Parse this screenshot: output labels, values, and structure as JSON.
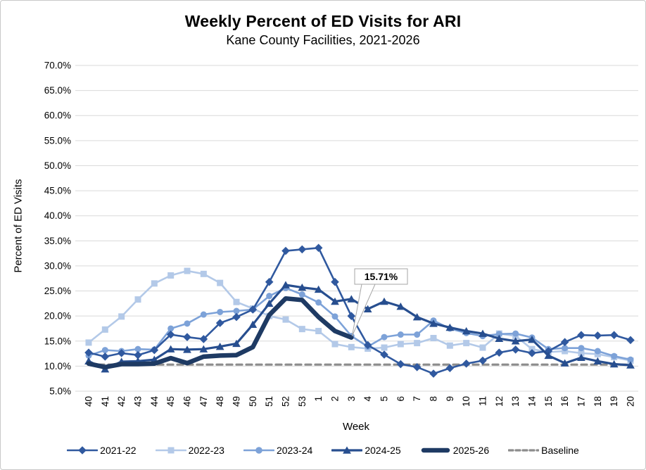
{
  "chart": {
    "title": "Weekly Percent of ED Visits for ARI",
    "subtitle": "Kane County Facilities, 2021-2026",
    "x_axis_label": "Week",
    "y_axis_label": "Percent of ED Visits"
  },
  "annotation": {
    "label": "15.71%",
    "series": "2025-26",
    "week": "3",
    "value": 15.71
  },
  "chart_data": {
    "type": "line",
    "title": "Weekly Percent of ED Visits for ARI",
    "subtitle": "Kane County Facilities, 2021-2026",
    "xlabel": "Week",
    "ylabel": "Percent of ED Visits",
    "x": [
      "40",
      "41",
      "42",
      "43",
      "44",
      "45",
      "46",
      "47",
      "48",
      "49",
      "50",
      "51",
      "52",
      "53",
      "1",
      "2",
      "3",
      "4",
      "5",
      "6",
      "7",
      "8",
      "9",
      "10",
      "11",
      "12",
      "13",
      "14",
      "15",
      "16",
      "17",
      "18",
      "19",
      "20"
    ],
    "ylim": [
      5,
      70
    ],
    "y_tick_step": 5,
    "y_tick_labels": [
      "5.0%",
      "10.0%",
      "15.0%",
      "20.0%",
      "25.0%",
      "30.0%",
      "35.0%",
      "40.0%",
      "45.0%",
      "50.0%",
      "55.0%",
      "60.0%",
      "65.0%",
      "70.0%"
    ],
    "grid": "horizontal",
    "legend_position": "bottom",
    "series": [
      {
        "name": "2021-22",
        "marker": "diamond",
        "color": "#30599F",
        "line_width": 2.6,
        "values": [
          12.7,
          11.9,
          12.6,
          12.2,
          13.2,
          16.3,
          15.8,
          15.4,
          18.6,
          19.8,
          21.3,
          26.8,
          33.0,
          33.3,
          33.6,
          26.8,
          20.0,
          14.2,
          12.3,
          10.4,
          9.8,
          8.5,
          9.6,
          10.5,
          11.1,
          12.7,
          13.3,
          12.6,
          13.0,
          14.8,
          16.2,
          16.1,
          16.2,
          15.2
        ]
      },
      {
        "name": "2022-23",
        "marker": "square",
        "color": "#B3C9E8",
        "line_width": 2.6,
        "values": [
          14.7,
          17.3,
          19.9,
          23.3,
          26.5,
          28.1,
          29.0,
          28.4,
          26.6,
          22.8,
          21.5,
          20.0,
          19.3,
          17.4,
          17.0,
          14.4,
          13.8,
          13.5,
          13.7,
          14.4,
          14.6,
          15.6,
          14.1,
          14.6,
          13.7,
          16.5,
          16.0,
          13.4,
          12.8,
          13.0,
          12.6,
          12.4,
          11.8,
          11.1
        ]
      },
      {
        "name": "2023-24",
        "marker": "circle",
        "color": "#7DA2D8",
        "line_width": 2.6,
        "values": [
          12.1,
          13.2,
          13.0,
          13.4,
          13.3,
          17.5,
          18.5,
          20.3,
          20.8,
          21.0,
          21.3,
          24.0,
          25.6,
          24.3,
          22.7,
          19.9,
          16.0,
          13.9,
          15.8,
          16.3,
          16.3,
          19.1,
          17.5,
          16.6,
          16.0,
          16.4,
          16.5,
          15.7,
          13.4,
          13.6,
          13.6,
          13.0,
          12.0,
          11.3
        ]
      },
      {
        "name": "2024-25",
        "marker": "triangle",
        "color": "#274E8F",
        "line_width": 3.2,
        "values": [
          11.0,
          9.4,
          10.9,
          11.0,
          11.3,
          13.4,
          13.3,
          13.4,
          13.9,
          14.5,
          18.3,
          22.5,
          26.2,
          25.7,
          25.3,
          22.9,
          23.4,
          21.4,
          22.9,
          21.9,
          19.8,
          18.5,
          17.7,
          17.0,
          16.5,
          15.5,
          15.0,
          15.3,
          12.1,
          10.6,
          11.7,
          11.0,
          10.4,
          10.2
        ]
      },
      {
        "name": "2025-26",
        "marker": "none",
        "color": "#1E3A63",
        "line_width": 6.5,
        "values": [
          10.5,
          9.8,
          10.4,
          10.4,
          10.5,
          11.6,
          10.6,
          11.9,
          12.1,
          12.2,
          13.8,
          20.2,
          23.5,
          23.2,
          19.8,
          17.0,
          15.71
        ]
      },
      {
        "name": "Baseline",
        "marker": "none",
        "color": "#8C8C8C",
        "line_width": 3.2,
        "dash": "8 6",
        "values": [
          10.3,
          10.3,
          10.3,
          10.3,
          10.3,
          10.3,
          10.3,
          10.3,
          10.3,
          10.3,
          10.3,
          10.3,
          10.3,
          10.3,
          10.3,
          10.3,
          10.3,
          10.3,
          10.3,
          10.3,
          10.3,
          10.3,
          10.3,
          10.3,
          10.3,
          10.3,
          10.3,
          10.3,
          10.3,
          10.3,
          10.3,
          10.3,
          10.3,
          10.3
        ]
      }
    ]
  }
}
